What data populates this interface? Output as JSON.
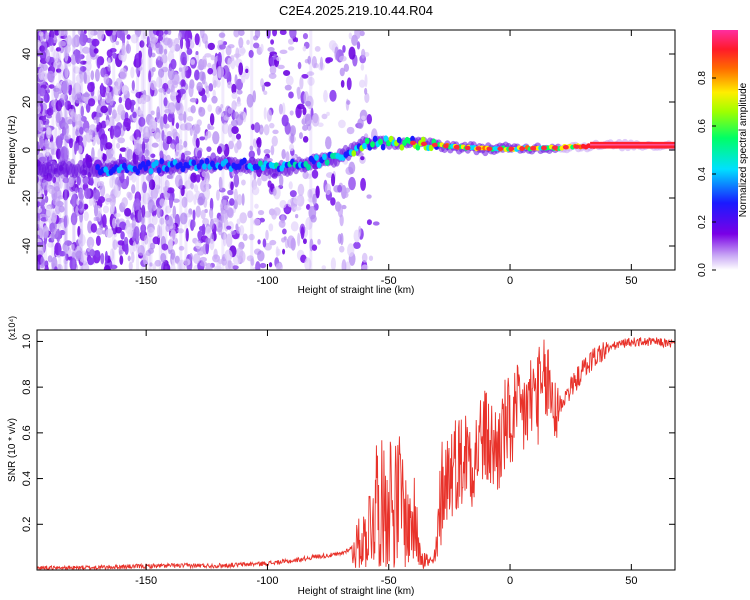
{
  "figure": {
    "title": "C2E4.2025.219.10.44.R04"
  },
  "colors": {
    "axis": "#000000",
    "snr_line": "#e8322a",
    "background": "#ffffff"
  },
  "chart_data": [
    {
      "type": "heatmap",
      "xlabel": "Height of straight line (km)",
      "ylabel": "Frequency (Hz)",
      "xlim": [
        -195,
        68
      ],
      "ylim": [
        -50,
        50
      ],
      "x_ticks": [
        -150,
        -100,
        -50,
        0,
        50
      ],
      "y_ticks": [
        -40,
        -20,
        0,
        20,
        40
      ],
      "colorbar": {
        "label": "Normalized spectral amplitude",
        "range": [
          0.0,
          1.0
        ],
        "ticks": [
          0.0,
          0.2,
          0.4,
          0.6,
          0.8
        ],
        "colormap": "rainbow (violet-blue-cyan-green-yellow-red-magenta)"
      },
      "ridge_center_freq_hz": {
        "x": [
          -195,
          -170,
          -150,
          -130,
          -110,
          -95,
          -80,
          -70,
          -65,
          -60,
          -50,
          -40,
          -30,
          -20,
          -10,
          0,
          20,
          40,
          68
        ],
        "y": [
          -8,
          -8,
          -7,
          -6,
          -6,
          -8,
          -5,
          -3,
          0,
          3,
          3,
          3,
          2,
          1,
          0.5,
          0.5,
          1,
          2,
          2
        ]
      }
    },
    {
      "type": "line",
      "xlabel": "Height of straight line (km)",
      "ylabel": "SNR (10 * v/v)",
      "y_multiplier_label": "(x10⁴)",
      "xlim": [
        -195,
        68
      ],
      "ylim": [
        0,
        1.05
      ],
      "x_ticks": [
        -150,
        -100,
        -50,
        0,
        50
      ],
      "y_ticks": [
        0.2,
        0.4,
        0.6,
        0.8,
        1.0
      ],
      "series": [
        {
          "x": [
            -195,
            -180,
            -160,
            -140,
            -120,
            -100,
            -90,
            -80,
            -70,
            -65,
            -60,
            -57,
            -55,
            -52,
            -50,
            -48,
            -45,
            -42,
            -40,
            -38,
            -35,
            -32,
            -30,
            -28,
            -25,
            -22,
            -20,
            -17,
            -15,
            -12,
            -10,
            -7,
            -5,
            -2,
            0,
            3,
            5,
            8,
            10,
            13,
            15,
            18,
            20,
            25,
            30,
            35,
            40,
            45,
            50,
            55,
            60,
            68
          ],
          "y": [
            0.01,
            0.01,
            0.015,
            0.02,
            0.02,
            0.03,
            0.04,
            0.06,
            0.07,
            0.1,
            0.15,
            0.25,
            0.35,
            0.3,
            0.4,
            0.3,
            0.35,
            0.2,
            0.25,
            0.15,
            0.05,
            0.03,
            0.1,
            0.4,
            0.45,
            0.5,
            0.5,
            0.55,
            0.5,
            0.6,
            0.6,
            0.55,
            0.55,
            0.65,
            0.65,
            0.7,
            0.7,
            0.75,
            0.8,
            0.78,
            0.85,
            0.75,
            0.72,
            0.8,
            0.88,
            0.94,
            0.97,
            0.99,
            1.0,
            1.0,
            1.0,
            0.99
          ]
        }
      ]
    }
  ]
}
